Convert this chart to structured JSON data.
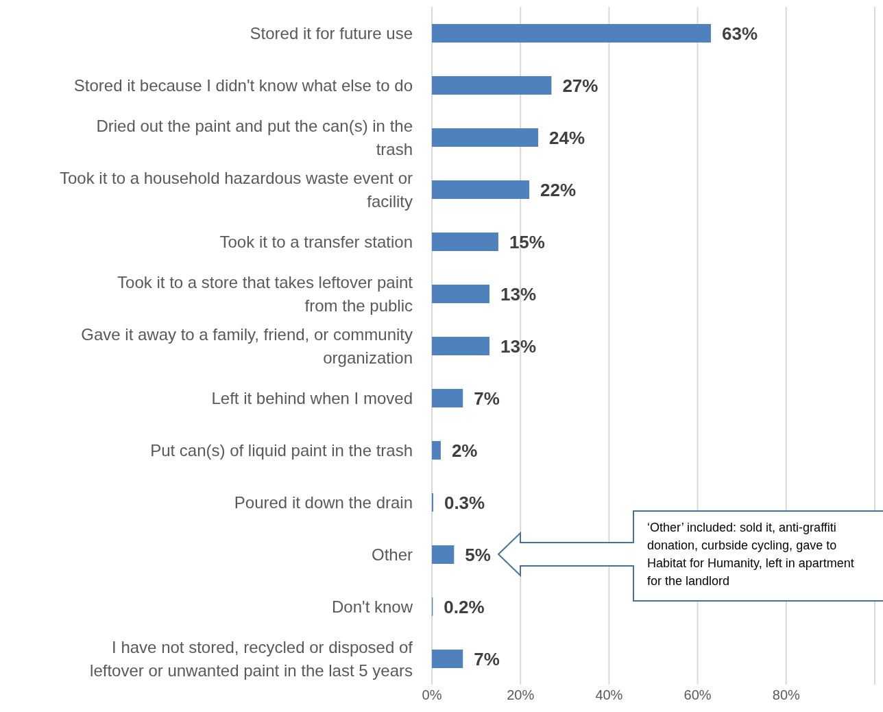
{
  "chart_data": {
    "type": "bar",
    "orientation": "horizontal",
    "categories": [
      "Stored it for future use",
      "Stored it because I didn't know what else to do",
      "Dried out the paint and put the can(s) in the trash",
      "Took it to a household hazardous waste event or facility",
      "Took it to a transfer station",
      "Took it to a store that takes leftover paint from the public",
      "Gave it away to a family, friend, or community organization",
      "Left it behind when I moved",
      "Put can(s) of liquid paint in the trash",
      "Poured it down the drain",
      "Other",
      "Don't know",
      "I have not stored, recycled or disposed of leftover or unwanted paint in the last 5 years"
    ],
    "values": [
      63,
      27,
      24,
      22,
      15,
      13,
      13,
      7,
      2,
      0.3,
      5,
      0.2,
      7
    ],
    "value_labels": [
      "63%",
      "27%",
      "24%",
      "22%",
      "15%",
      "13%",
      "13%",
      "7%",
      "2%",
      "0.3%",
      "5%",
      "0.2%",
      "7%"
    ],
    "color": "#4f81bd",
    "xlim": [
      0,
      100
    ],
    "xticks": [
      {
        "value": 0,
        "label": "0%"
      },
      {
        "value": 20,
        "label": "20%"
      },
      {
        "value": 40,
        "label": "40%"
      },
      {
        "value": 60,
        "label": "60%"
      },
      {
        "value": 80,
        "label": "80%"
      },
      {
        "value": 100,
        "label": null
      }
    ],
    "grid": "x",
    "annotations": [
      "‘Other’ included: sold it, anti-graffiti donation, curbside cycling, gave to Habitat for Humanity, left in apartment for the landlord"
    ]
  }
}
